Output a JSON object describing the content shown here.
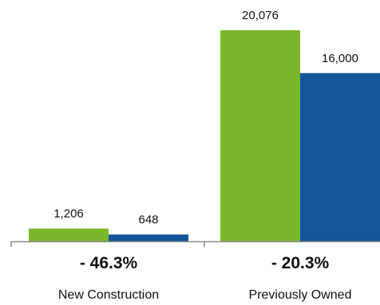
{
  "colors": {
    "series_a": "#7ab82b",
    "series_b": "#15549a",
    "axis": "#8a8a8a"
  },
  "chart_data": {
    "type": "bar",
    "categories": [
      "New Construction",
      "Previously Owned"
    ],
    "series": [
      {
        "values": [
          1206,
          20076
        ],
        "labels": [
          "1,206",
          "20,076"
        ]
      },
      {
        "values": [
          648,
          16000
        ],
        "labels": [
          "648",
          "16,000"
        ]
      }
    ],
    "changes": [
      "- 46.3%",
      "- 20.3%"
    ],
    "title": "",
    "xlabel": "",
    "ylabel": "",
    "ylim": [
      0,
      20076
    ],
    "grid": false,
    "legend": "none"
  }
}
